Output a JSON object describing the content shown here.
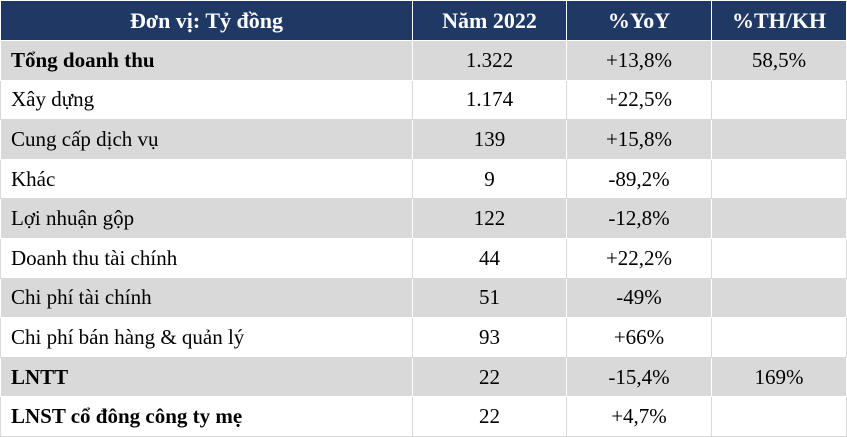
{
  "table": {
    "headers": [
      "Đơn vị: Tỷ đồng",
      "Năm 2022",
      "%YoY",
      "%TH/KH"
    ],
    "header_bg": "#1f3864",
    "shade_bg": "#d9d9d9",
    "rows": [
      {
        "label": "Tổng doanh thu",
        "value": "1.322",
        "yoy": "+13,8%",
        "thkh": "58,5%",
        "bold": true
      },
      {
        "label": "Xây dựng",
        "value": "1.174",
        "yoy": "+22,5%",
        "thkh": "",
        "bold": false
      },
      {
        "label": "Cung cấp dịch vụ",
        "value": "139",
        "yoy": "+15,8%",
        "thkh": "",
        "bold": false
      },
      {
        "label": "Khác",
        "value": "9",
        "yoy": "-89,2%",
        "thkh": "",
        "bold": false
      },
      {
        "label": "Lợi nhuận gộp",
        "value": "122",
        "yoy": "-12,8%",
        "thkh": "",
        "bold": false
      },
      {
        "label": "Doanh thu tài chính",
        "value": "44",
        "yoy": "+22,2%",
        "thkh": "",
        "bold": false
      },
      {
        "label": "Chi phí tài chính",
        "value": "51",
        "yoy": "-49%",
        "thkh": "",
        "bold": false
      },
      {
        "label": "Chi phí bán hàng & quản lý",
        "value": "93",
        "yoy": "+66%",
        "thkh": "",
        "bold": false
      },
      {
        "label": "LNTT",
        "value": "22",
        "yoy": "-15,4%",
        "thkh": "169%",
        "bold": true
      },
      {
        "label": "LNST cổ đông công ty mẹ",
        "value": "22",
        "yoy": "+4,7%",
        "thkh": "",
        "bold": true
      }
    ]
  }
}
